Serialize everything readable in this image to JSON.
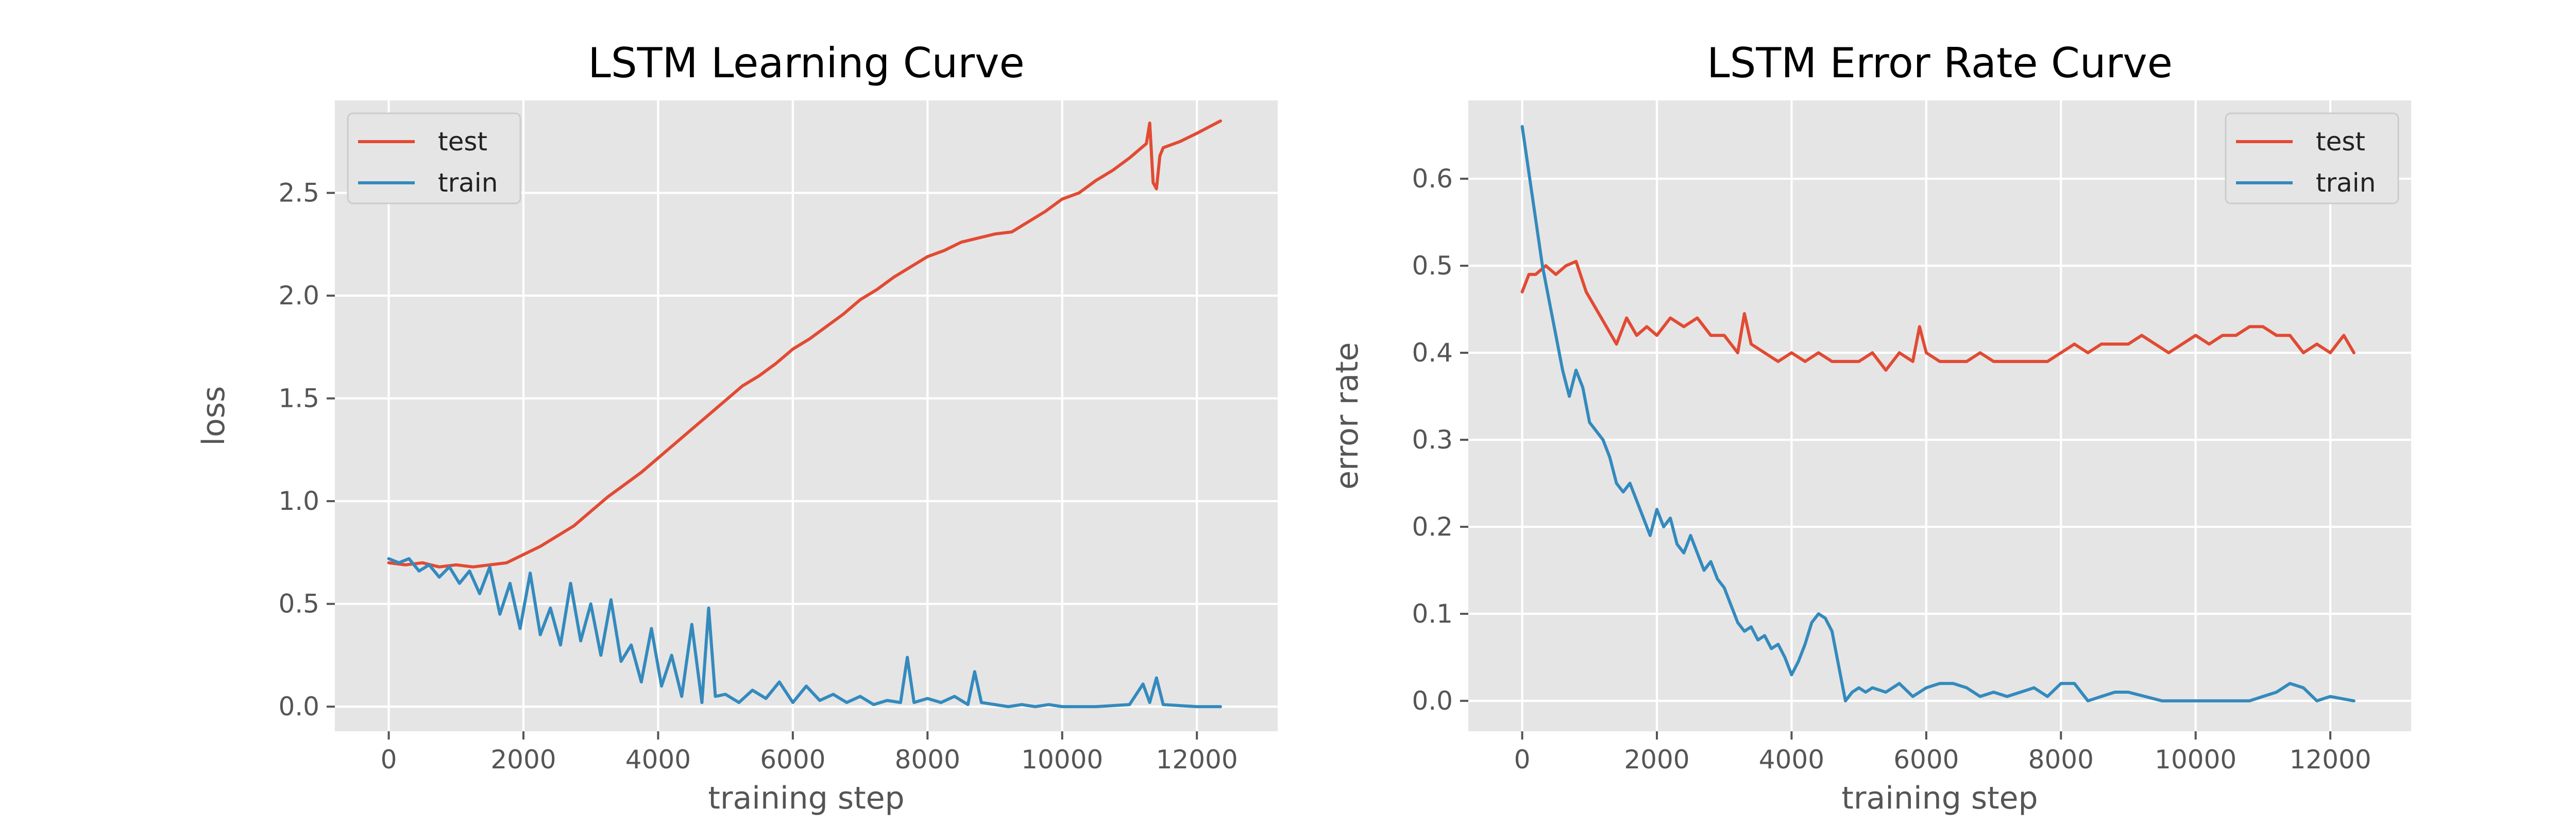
{
  "chart_data": [
    {
      "type": "line",
      "title": "LSTM Learning Curve",
      "xlabel": "training step",
      "ylabel": "loss",
      "xlim": [
        -800,
        13200
      ],
      "ylim": [
        -0.12,
        2.95
      ],
      "xticks": [
        0,
        2000,
        4000,
        6000,
        8000,
        10000,
        12000
      ],
      "xtick_labels": [
        "0",
        "2000",
        "4000",
        "6000",
        "8000",
        "10000",
        "12000"
      ],
      "yticks": [
        0.0,
        0.5,
        1.0,
        1.5,
        2.0,
        2.5
      ],
      "ytick_labels": [
        "0.0",
        "0.5",
        "1.0",
        "1.5",
        "2.0",
        "2.5"
      ],
      "grid": true,
      "legend": "top-left",
      "series": [
        {
          "name": "test",
          "color": "#e24a33",
          "x": [
            0,
            250,
            500,
            750,
            1000,
            1250,
            1500,
            1750,
            2000,
            2250,
            2500,
            2750,
            3000,
            3250,
            3500,
            3750,
            4000,
            4250,
            4500,
            4750,
            5000,
            5250,
            5500,
            5750,
            6000,
            6250,
            6500,
            6750,
            7000,
            7250,
            7500,
            7750,
            8000,
            8250,
            8500,
            8750,
            9000,
            9250,
            9500,
            9750,
            10000,
            10250,
            10500,
            10750,
            11000,
            11250,
            11300,
            11350,
            11400,
            11450,
            11500,
            11750,
            12000,
            12350
          ],
          "y": [
            0.7,
            0.69,
            0.7,
            0.68,
            0.69,
            0.68,
            0.69,
            0.7,
            0.74,
            0.78,
            0.83,
            0.88,
            0.95,
            1.02,
            1.08,
            1.14,
            1.21,
            1.28,
            1.35,
            1.42,
            1.49,
            1.56,
            1.61,
            1.67,
            1.74,
            1.79,
            1.85,
            1.91,
            1.98,
            2.03,
            2.09,
            2.14,
            2.19,
            2.22,
            2.26,
            2.28,
            2.3,
            2.31,
            2.36,
            2.41,
            2.47,
            2.5,
            2.56,
            2.61,
            2.67,
            2.74,
            2.84,
            2.55,
            2.52,
            2.68,
            2.72,
            2.75,
            2.79,
            2.85
          ]
        },
        {
          "name": "train",
          "color": "#348abd",
          "x": [
            0,
            150,
            300,
            450,
            600,
            750,
            900,
            1050,
            1200,
            1350,
            1500,
            1650,
            1800,
            1950,
            2100,
            2250,
            2400,
            2550,
            2700,
            2850,
            3000,
            3150,
            3300,
            3450,
            3600,
            3750,
            3900,
            4050,
            4200,
            4350,
            4500,
            4650,
            4750,
            4850,
            5000,
            5200,
            5400,
            5600,
            5800,
            6000,
            6200,
            6400,
            6600,
            6800,
            7000,
            7200,
            7400,
            7600,
            7700,
            7800,
            8000,
            8200,
            8400,
            8600,
            8700,
            8800,
            9000,
            9200,
            9400,
            9600,
            9800,
            10000,
            10500,
            11000,
            11200,
            11300,
            11400,
            11500,
            12000,
            12350
          ],
          "y": [
            0.72,
            0.7,
            0.72,
            0.66,
            0.69,
            0.63,
            0.68,
            0.6,
            0.66,
            0.55,
            0.68,
            0.45,
            0.6,
            0.38,
            0.65,
            0.35,
            0.48,
            0.3,
            0.6,
            0.32,
            0.5,
            0.25,
            0.52,
            0.22,
            0.3,
            0.12,
            0.38,
            0.1,
            0.25,
            0.05,
            0.4,
            0.02,
            0.48,
            0.05,
            0.06,
            0.02,
            0.08,
            0.04,
            0.12,
            0.02,
            0.1,
            0.03,
            0.06,
            0.02,
            0.05,
            0.01,
            0.03,
            0.02,
            0.24,
            0.02,
            0.04,
            0.02,
            0.05,
            0.01,
            0.17,
            0.02,
            0.01,
            0.0,
            0.01,
            0.0,
            0.01,
            0.0,
            0.0,
            0.01,
            0.11,
            0.02,
            0.14,
            0.01,
            0.0,
            0.0
          ]
        }
      ]
    },
    {
      "type": "line",
      "title": "LSTM Error Rate Curve",
      "xlabel": "training step",
      "ylabel": "error rate",
      "xlim": [
        -800,
        13200
      ],
      "ylim": [
        -0.035,
        0.69
      ],
      "xticks": [
        0,
        2000,
        4000,
        6000,
        8000,
        10000,
        12000
      ],
      "xtick_labels": [
        "0",
        "2000",
        "4000",
        "6000",
        "8000",
        "10000",
        "12000"
      ],
      "yticks": [
        0.0,
        0.1,
        0.2,
        0.3,
        0.4,
        0.5,
        0.6
      ],
      "ytick_labels": [
        "0.0",
        "0.1",
        "0.2",
        "0.3",
        "0.4",
        "0.5",
        "0.6"
      ],
      "grid": true,
      "legend": "top-right",
      "series": [
        {
          "name": "test",
          "color": "#e24a33",
          "x": [
            0,
            100,
            200,
            350,
            500,
            650,
            800,
            950,
            1100,
            1250,
            1400,
            1550,
            1700,
            1850,
            2000,
            2200,
            2400,
            2600,
            2800,
            3000,
            3200,
            3300,
            3400,
            3600,
            3800,
            4000,
            4200,
            4400,
            4600,
            4800,
            5000,
            5200,
            5400,
            5600,
            5800,
            5900,
            6000,
            6200,
            6400,
            6600,
            6800,
            7000,
            7200,
            7400,
            7600,
            7800,
            8000,
            8200,
            8400,
            8600,
            8800,
            9000,
            9200,
            9400,
            9600,
            9800,
            10000,
            10200,
            10400,
            10600,
            10800,
            11000,
            11200,
            11400,
            11600,
            11800,
            12000,
            12200,
            12350
          ],
          "y": [
            0.47,
            0.49,
            0.49,
            0.5,
            0.49,
            0.5,
            0.505,
            0.47,
            0.45,
            0.43,
            0.41,
            0.44,
            0.42,
            0.43,
            0.42,
            0.44,
            0.43,
            0.44,
            0.42,
            0.42,
            0.4,
            0.445,
            0.41,
            0.4,
            0.39,
            0.4,
            0.39,
            0.4,
            0.39,
            0.39,
            0.39,
            0.4,
            0.38,
            0.4,
            0.39,
            0.43,
            0.4,
            0.39,
            0.39,
            0.39,
            0.4,
            0.39,
            0.39,
            0.39,
            0.39,
            0.39,
            0.4,
            0.41,
            0.4,
            0.41,
            0.41,
            0.41,
            0.42,
            0.41,
            0.4,
            0.41,
            0.42,
            0.41,
            0.42,
            0.42,
            0.43,
            0.43,
            0.42,
            0.42,
            0.4,
            0.41,
            0.4,
            0.42,
            0.4
          ]
        },
        {
          "name": "train",
          "color": "#348abd",
          "x": [
            0,
            150,
            300,
            450,
            600,
            700,
            800,
            900,
            1000,
            1100,
            1200,
            1300,
            1400,
            1500,
            1600,
            1700,
            1800,
            1900,
            2000,
            2100,
            2200,
            2300,
            2400,
            2500,
            2600,
            2700,
            2800,
            2900,
            3000,
            3100,
            3200,
            3300,
            3400,
            3500,
            3600,
            3700,
            3800,
            3900,
            4000,
            4100,
            4200,
            4300,
            4400,
            4500,
            4600,
            4700,
            4800,
            4900,
            5000,
            5100,
            5200,
            5400,
            5600,
            5800,
            6000,
            6200,
            6400,
            6600,
            6800,
            7000,
            7200,
            7400,
            7600,
            7800,
            8000,
            8200,
            8400,
            8600,
            8800,
            9000,
            9500,
            10000,
            10500,
            10800,
            11000,
            11200,
            11400,
            11600,
            11800,
            12000,
            12350
          ],
          "y": [
            0.66,
            0.58,
            0.5,
            0.44,
            0.38,
            0.35,
            0.38,
            0.36,
            0.32,
            0.31,
            0.3,
            0.28,
            0.25,
            0.24,
            0.25,
            0.23,
            0.21,
            0.19,
            0.22,
            0.2,
            0.21,
            0.18,
            0.17,
            0.19,
            0.17,
            0.15,
            0.16,
            0.14,
            0.13,
            0.11,
            0.09,
            0.08,
            0.085,
            0.07,
            0.075,
            0.06,
            0.065,
            0.05,
            0.03,
            0.045,
            0.065,
            0.09,
            0.1,
            0.095,
            0.08,
            0.04,
            0.0,
            0.01,
            0.015,
            0.01,
            0.015,
            0.01,
            0.02,
            0.005,
            0.015,
            0.02,
            0.02,
            0.015,
            0.005,
            0.01,
            0.005,
            0.01,
            0.015,
            0.005,
            0.02,
            0.02,
            0.0,
            0.005,
            0.01,
            0.01,
            0.0,
            0.0,
            0.0,
            0.0,
            0.005,
            0.01,
            0.02,
            0.015,
            0.0,
            0.005,
            0.0
          ]
        }
      ]
    }
  ]
}
